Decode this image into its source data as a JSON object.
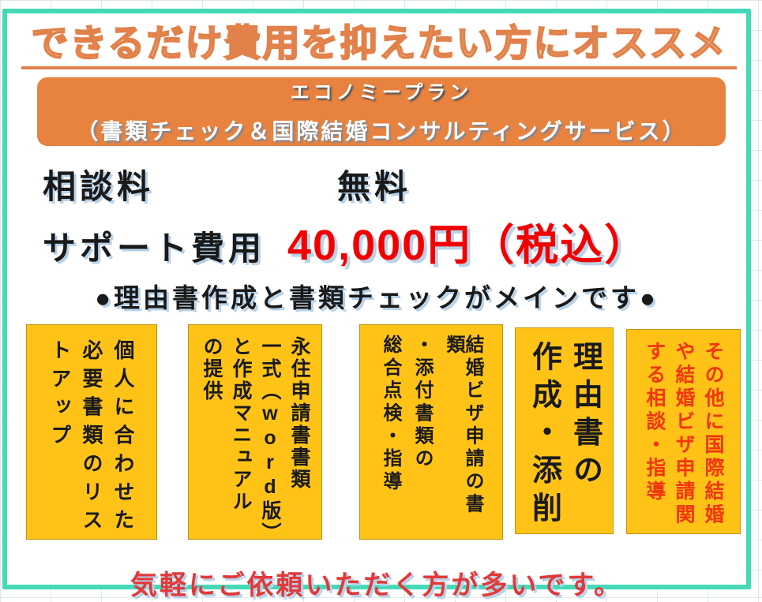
{
  "header": {
    "title": "できるだけ費用を抑えたい方にオススメ"
  },
  "banner": {
    "plan_name": "エコノミープラン",
    "plan_subtitle": "（書類チェック＆国際結婚コンサルティングサービス）"
  },
  "fees": {
    "consultation_label": "相談料",
    "consultation_value": "無料",
    "support_label": "サポート費用",
    "support_value": "40,000円（税込）"
  },
  "highlight": "●理由書作成と書類チェックがメインです●",
  "service_boxes": [
    {
      "columns": [
        "個人に合わせた",
        "必要書類のリス",
        "トアップ"
      ]
    },
    {
      "columns": [
        "永住申請書書類",
        "一式（word版）",
        "と作成マニュアル",
        "の提供"
      ]
    },
    {
      "columns": [
        "結婚ビザ申請の書類",
        "・添付書類の",
        "総合点検・指導"
      ]
    },
    {
      "columns": [
        "理由書の",
        "作成・添削"
      ]
    },
    {
      "columns": [
        "その他に国際結婚",
        "や結婚ビザ申請関",
        "する相談・指導"
      ]
    }
  ],
  "footer": "気軽にご依頼いただく方が多いです。",
  "colors": {
    "teal": "#45d9b8",
    "orange": "#e8823f",
    "amber": "#ffc318",
    "amber-border": "#c79110",
    "red-price": "#f20000",
    "red-box": "#f1350e",
    "red-footer": "#e03a3a",
    "shadow-blue": "#b8d2ea",
    "title-stroke": "#e2814a",
    "title-fill": "#f8d4ae",
    "grid-line": "#dce8ea",
    "ink": "#1a1a1a"
  }
}
